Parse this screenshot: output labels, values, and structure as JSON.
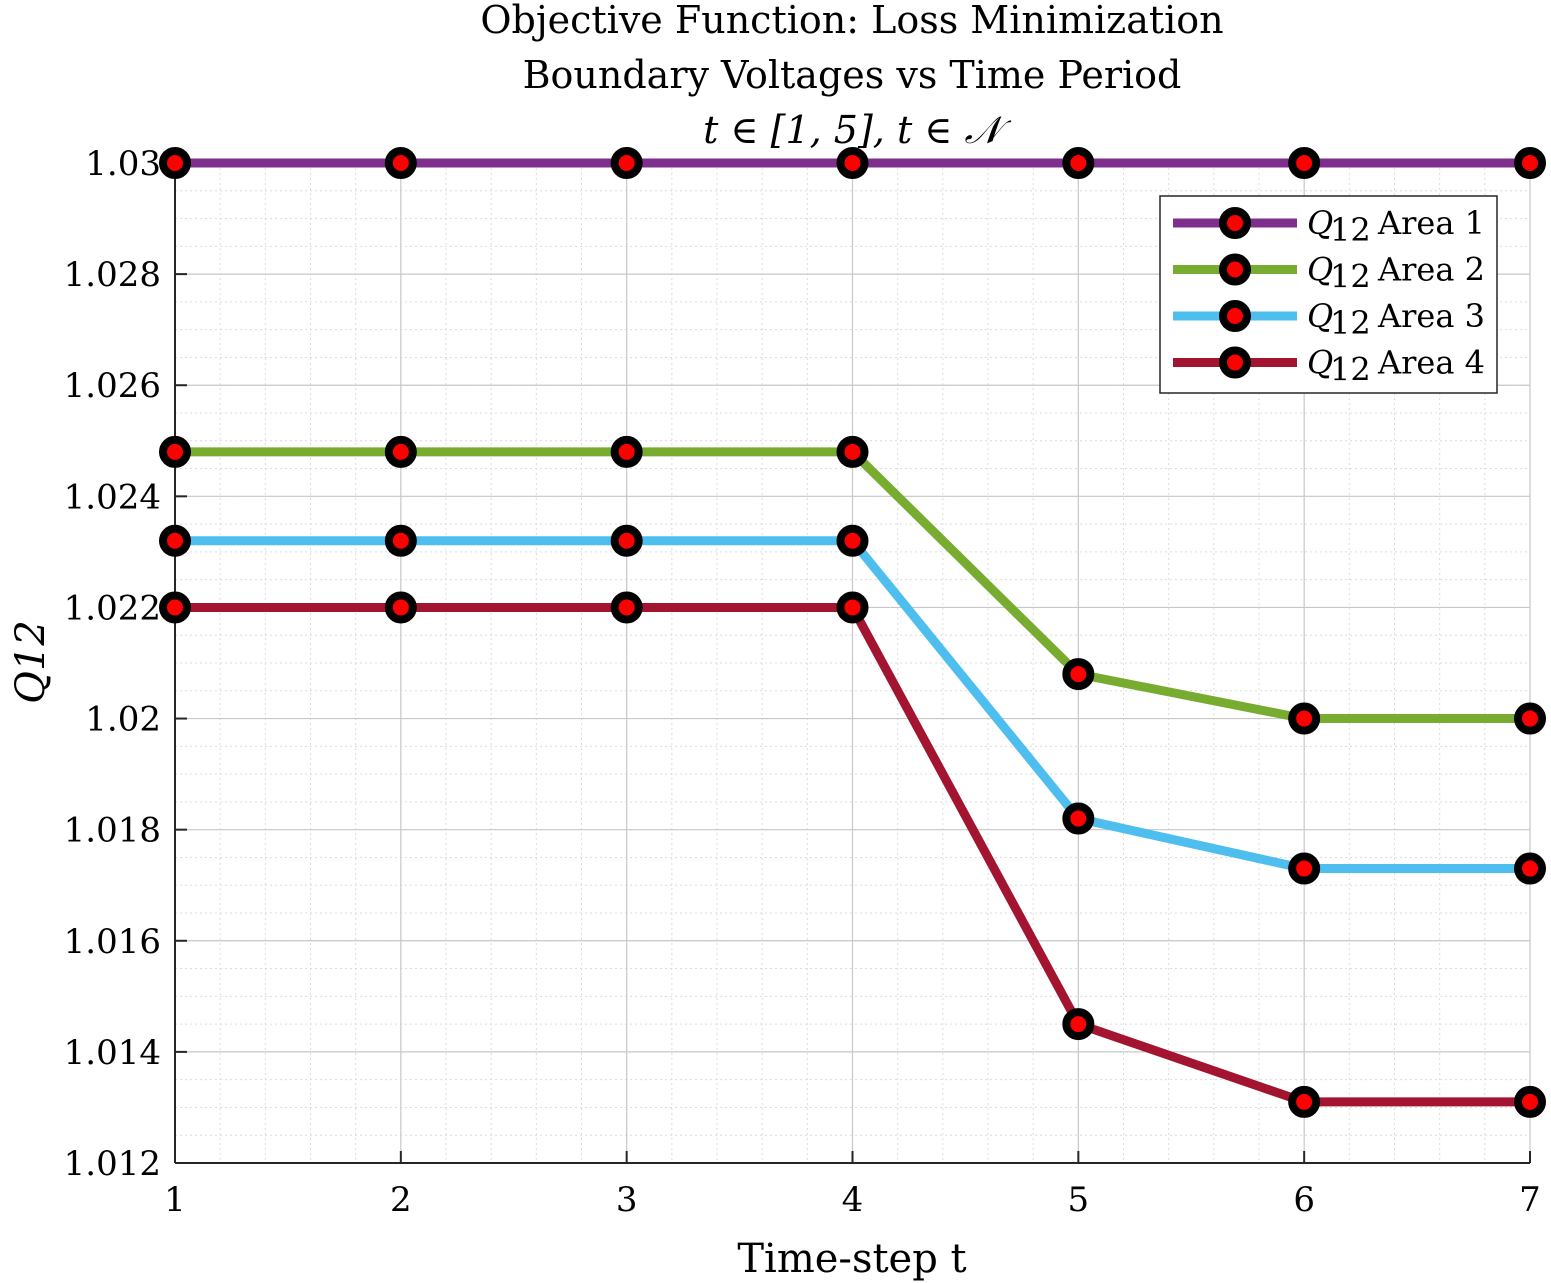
{
  "chart_data": {
    "type": "line",
    "title_lines": [
      "Objective Function: Loss Minimization",
      "Boundary Voltages vs Time Period",
      "t ∈ [1, 5], t ∈ 𝒩"
    ],
    "xlabel": "Time-step t",
    "ylabel": "Q12",
    "xlim": [
      1,
      7
    ],
    "ylim": [
      1.012,
      1.03
    ],
    "xticks": [
      1,
      2,
      3,
      4,
      5,
      6,
      7
    ],
    "xtick_labels": [
      "1",
      "2",
      "3",
      "4",
      "5",
      "6",
      "7"
    ],
    "yticks": [
      1.012,
      1.014,
      1.016,
      1.018,
      1.02,
      1.022,
      1.024,
      1.026,
      1.028,
      1.03
    ],
    "ytick_labels": [
      "1.012",
      "1.014",
      "1.016",
      "1.018",
      "1.02",
      "1.022",
      "1.024",
      "1.026",
      "1.028",
      "1.03"
    ],
    "grid": true,
    "minor_grid": true,
    "legend_position": "top-right",
    "marker_edge_color": "#000000",
    "marker_face_color": "#ff0000",
    "x": [
      1,
      2,
      3,
      4,
      5,
      6,
      7
    ],
    "series": [
      {
        "name": "Q12 Area 1",
        "legend_label": "Area 1",
        "color": "#7e2f8e",
        "values": [
          1.03,
          1.03,
          1.03,
          1.03,
          1.03,
          1.03,
          1.03
        ]
      },
      {
        "name": "Q12 Area 2",
        "legend_label": "Area 2",
        "color": "#77ac30",
        "values": [
          1.0248,
          1.0248,
          1.0248,
          1.0248,
          1.0208,
          1.02,
          1.02
        ]
      },
      {
        "name": "Q12 Area 3",
        "legend_label": "Area 3",
        "color": "#4dbeee",
        "values": [
          1.0232,
          1.0232,
          1.0232,
          1.0232,
          1.0182,
          1.0173,
          1.0173
        ]
      },
      {
        "name": "Q12 Area 4",
        "legend_label": "Area 4",
        "color": "#a2142f",
        "values": [
          1.022,
          1.022,
          1.022,
          1.022,
          1.0145,
          1.0131,
          1.0131
        ]
      }
    ]
  }
}
